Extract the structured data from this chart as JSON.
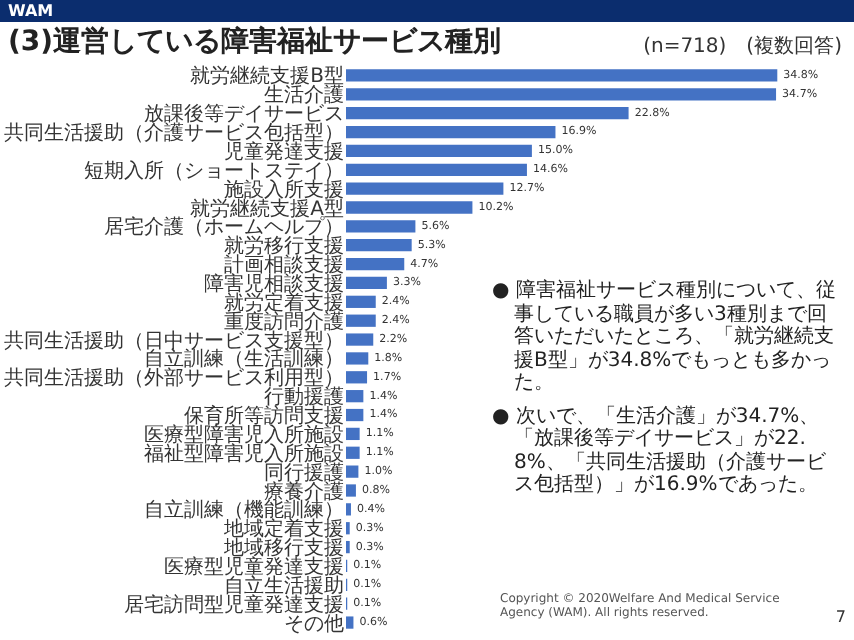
{
  "chart_data": {
    "type": "bar",
    "orientation": "horizontal",
    "title": "(3)運営している障害福祉サービス種別",
    "categories": [
      "就労継続支援B型",
      "生活介護",
      "放課後等デイサービス",
      "共同生活援助（介護サービス包括型）",
      "児童発達支援",
      "短期入所（ショートステイ）",
      "施設入所支援",
      "就労継続支援A型",
      "居宅介護（ホームヘルプ）",
      "就労移行支援",
      "計画相談支援",
      "障害児相談支援",
      "就労定着支援",
      "重度訪問介護",
      "共同生活援助（日中サービス支援型）",
      "自立訓練（生活訓練）",
      "共同生活援助（外部サービス利用型）",
      "行動援護",
      "保育所等訪問支援",
      "医療型障害児入所施設",
      "福祉型障害児入所施設",
      "同行援護",
      "療養介護",
      "自立訓練（機能訓練）",
      "地域定着支援",
      "地域移行支援",
      "医療型児童発達支援",
      "自立生活援助",
      "居宅訪問型児童発達支援",
      "その他"
    ],
    "values": [
      34.8,
      34.7,
      22.8,
      16.9,
      15.0,
      14.6,
      12.7,
      10.2,
      5.6,
      5.3,
      4.7,
      3.3,
      2.4,
      2.4,
      2.2,
      1.8,
      1.7,
      1.4,
      1.4,
      1.1,
      1.1,
      1.0,
      0.8,
      0.4,
      0.3,
      0.3,
      0.1,
      0.1,
      0.1,
      0.6
    ],
    "value_labels": [
      "34.8%",
      "34.7%",
      "22.8%",
      "16.9%",
      "15.0%",
      "14.6%",
      "12.7%",
      "10.2%",
      "5.6%",
      "5.3%",
      "4.7%",
      "3.3%",
      "2.4%",
      "2.4%",
      "2.2%",
      "1.8%",
      "1.7%",
      "1.4%",
      "1.4%",
      "1.1%",
      "1.1%",
      "1.0%",
      "0.8%",
      "0.4%",
      "0.3%",
      "0.3%",
      "0.1%",
      "0.1%",
      "0.1%",
      "0.6%"
    ],
    "color": "#4472c4",
    "grid": false,
    "legend": false,
    "annotations": [
      "WAM",
      "(n=718)　(複数回答)",
      "● 障害福祉サービス種別について、従事している職員が多い3種別まで回答いただいたところ、「就労継続支援B型」が34.8%でもっとも多かった。",
      "● 次いで、「生活介護」が34.7%、「放課後等デイサービス」が22.8%、「共同生活援助（介護サービス包括型）」が16.9%であった。",
      "Copyright © 2020Welfare And Medical Service Agency (WAM). All rights reserved.",
      "7"
    ]
  }
}
